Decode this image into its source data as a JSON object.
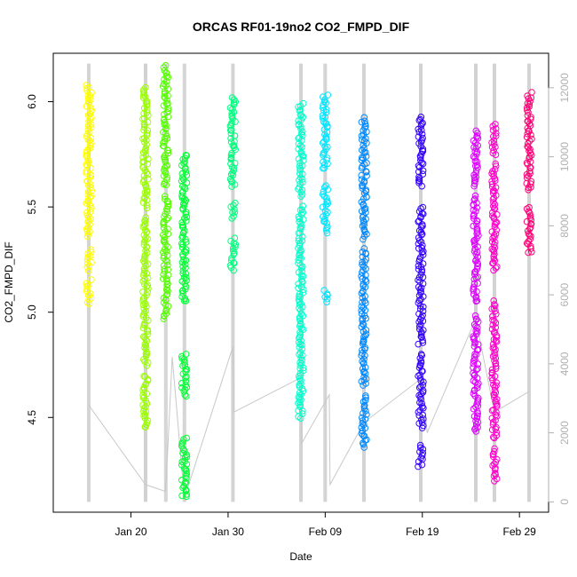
{
  "chart_data": {
    "type": "scatter",
    "title": "ORCAS RF01-19no2 CO2_FMPD_DIF",
    "xlabel": "Date",
    "ylabel": "CO2_FMPD_DIF",
    "ylim": [
      4.05,
      6.23
    ],
    "y_ticks": [
      "4.5",
      "5.0",
      "5.5",
      "6.0"
    ],
    "y_tick_values": [
      4.5,
      5.0,
      5.5,
      6.0
    ],
    "x_ticks": [
      "Jan 20",
      "Jan 30",
      "Feb 09",
      "Feb 19",
      "Feb 29"
    ],
    "x_tick_values": [
      "2016-01-20",
      "2016-01-30",
      "2016-02-09",
      "2016-02-19",
      "2016-02-29"
    ],
    "xlim": [
      "2016-01-12",
      "2016-03-03"
    ],
    "right_axis": {
      "ylim": [
        -300,
        13000
      ],
      "ticks": [
        "0",
        "2000",
        "4000",
        "6000",
        "8000",
        "10000",
        "12000"
      ],
      "tick_values": [
        0,
        2000,
        4000,
        6000,
        8000,
        10000,
        12000
      ],
      "color": "#b0b0b0"
    },
    "grid": false,
    "legend": "none",
    "altitude_trace": [
      [
        "2016-01-15T16:00",
        2800
      ],
      [
        "2016-01-21T12:00",
        500
      ],
      [
        "2016-01-23T14:00",
        300
      ],
      [
        "2016-01-24T06:00",
        4200
      ],
      [
        "2016-01-25T12:00",
        100
      ],
      [
        "2016-01-30T12:00",
        4500
      ],
      [
        "2016-01-30T14:00",
        2600
      ],
      [
        "2016-02-06T12:00",
        3600
      ],
      [
        "2016-02-06T14:00",
        1700
      ],
      [
        "2016-02-09T10:00",
        3100
      ],
      [
        "2016-02-09T12:00",
        500
      ],
      [
        "2016-02-13T00:00",
        2300
      ],
      [
        "2016-02-19T00:00",
        3600
      ],
      [
        "2016-02-19T12:00",
        2000
      ],
      [
        "2016-02-24T12:00",
        5300
      ],
      [
        "2016-02-26T10:00",
        2600
      ],
      [
        "2016-03-01T00:00",
        3200
      ]
    ],
    "altitude_range": [
      0,
      12700
    ],
    "series": [
      {
        "date": "2016-01-15T16:00",
        "color": "#ffff00",
        "segments": [
          [
            5.04,
            5.15
          ],
          [
            5.2,
            5.3
          ],
          [
            5.36,
            6.08
          ]
        ]
      },
      {
        "date": "2016-01-21T12:00",
        "color": "#9aff00",
        "segments": [
          [
            4.45,
            4.7
          ],
          [
            4.75,
            5.45
          ],
          [
            5.5,
            6.07
          ]
        ]
      },
      {
        "date": "2016-01-23T14:00",
        "color": "#55ff00",
        "segments": [
          [
            4.97,
            5.55
          ],
          [
            5.6,
            6.17
          ]
        ]
      },
      {
        "date": "2016-01-25T12:00",
        "color": "#00ff33",
        "segments": [
          [
            4.12,
            4.4
          ],
          [
            4.6,
            4.8
          ],
          [
            5.05,
            5.75
          ]
        ]
      },
      {
        "date": "2016-01-30T12:00",
        "color": "#00ff7f",
        "segments": [
          [
            5.2,
            5.35
          ],
          [
            5.45,
            5.52
          ],
          [
            5.6,
            6.02
          ]
        ]
      },
      {
        "date": "2016-02-06T12:00",
        "color": "#00ffcc",
        "segments": [
          [
            4.5,
            5.5
          ],
          [
            5.55,
            5.99
          ]
        ]
      },
      {
        "date": "2016-02-09T00:00",
        "color": "#00e5ff",
        "segments": [
          [
            5.05,
            5.1
          ],
          [
            5.38,
            5.6
          ],
          [
            5.68,
            6.03
          ]
        ]
      },
      {
        "date": "2016-02-13T00:00",
        "color": "#0088ff",
        "segments": [
          [
            4.36,
            4.6
          ],
          [
            4.65,
            5.3
          ],
          [
            5.35,
            5.92
          ]
        ]
      },
      {
        "date": "2016-02-18T20:00",
        "color": "#3300ff",
        "segments": [
          [
            4.27,
            4.37
          ],
          [
            4.45,
            4.8
          ],
          [
            4.85,
            5.5
          ],
          [
            5.6,
            5.93
          ]
        ]
      },
      {
        "date": "2016-02-24T12:00",
        "color": "#dd00ff",
        "segments": [
          [
            4.43,
            4.98
          ],
          [
            5.05,
            5.55
          ],
          [
            5.6,
            5.86
          ]
        ]
      },
      {
        "date": "2016-02-26T10:00",
        "color": "#ff00cc",
        "segments": [
          [
            4.2,
            4.35
          ],
          [
            4.4,
            5.05
          ],
          [
            5.2,
            5.7
          ],
          [
            5.75,
            5.89
          ]
        ]
      },
      {
        "date": "2016-03-01T00:00",
        "color": "#ff0077",
        "segments": [
          [
            5.28,
            5.5
          ],
          [
            5.58,
            6.04
          ]
        ]
      }
    ]
  }
}
